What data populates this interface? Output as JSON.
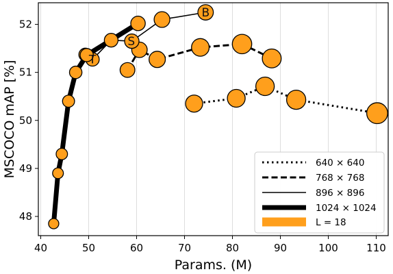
{
  "chart_data": {
    "type": "scatter",
    "xlabel": "Params. (M)",
    "ylabel": "MSCOCO mAP [%]",
    "xlim": [
      39.5,
      112.5
    ],
    "ylim": [
      47.6,
      52.45
    ],
    "xticks": [
      40,
      50,
      60,
      70,
      80,
      90,
      100,
      110
    ],
    "yticks": [
      48,
      49,
      50,
      51,
      52
    ],
    "grid": "vertical",
    "legend_position": "lower-right",
    "legend": [
      {
        "label": "640 × 640",
        "style": "dotted"
      },
      {
        "label": "768 × 768",
        "style": "dashed"
      },
      {
        "label": "896 × 896",
        "style": "thin"
      },
      {
        "label": "1024 × 1024",
        "style": "thick"
      },
      {
        "label": "L = 18",
        "style": "bar"
      }
    ],
    "colors": {
      "marker_fill": "#ff9f1c",
      "marker_edge": "#000000",
      "line": "#000000",
      "grid": "#dddddd"
    },
    "series": [
      {
        "name": "640 × 640",
        "style": "dotted",
        "points": [
          {
            "x": 72.0,
            "y": 50.35,
            "size": 1.0
          },
          {
            "x": 80.8,
            "y": 50.46,
            "size": 1.04
          },
          {
            "x": 86.8,
            "y": 50.71,
            "size": 1.08
          },
          {
            "x": 93.3,
            "y": 50.43,
            "size": 1.12
          },
          {
            "x": 110.2,
            "y": 50.15,
            "size": 1.22
          }
        ]
      },
      {
        "name": "768 × 768",
        "style": "dashed",
        "points": [
          {
            "x": 58.1,
            "y": 51.05,
            "size": 0.86
          },
          {
            "x": 60.6,
            "y": 51.47,
            "size": 0.9
          },
          {
            "x": 64.3,
            "y": 51.27,
            "size": 0.95
          },
          {
            "x": 73.3,
            "y": 51.52,
            "size": 1.03
          },
          {
            "x": 82.0,
            "y": 51.59,
            "size": 1.14
          },
          {
            "x": 88.2,
            "y": 51.29,
            "size": 1.1
          }
        ]
      },
      {
        "name": "896 × 896",
        "style": "thin",
        "points": [
          {
            "x": 49.3,
            "y": 51.37,
            "size": 0.75
          },
          {
            "x": 50.8,
            "y": 51.27,
            "size": 0.78
          },
          {
            "x": 54.7,
            "y": 51.67,
            "size": 0.8
          },
          {
            "x": 59.0,
            "y": 51.65,
            "size": 0.84
          },
          {
            "x": 65.3,
            "y": 52.1,
            "size": 0.92
          },
          {
            "x": 74.4,
            "y": 52.25,
            "size": 0.9
          }
        ]
      },
      {
        "name": "1024 × 1024",
        "style": "thick",
        "points": [
          {
            "x": 42.7,
            "y": 47.85,
            "size": 0.6
          },
          {
            "x": 43.6,
            "y": 48.9,
            "size": 0.63
          },
          {
            "x": 44.4,
            "y": 49.3,
            "size": 0.66
          },
          {
            "x": 45.8,
            "y": 50.4,
            "size": 0.7
          },
          {
            "x": 47.3,
            "y": 51.0,
            "size": 0.73
          },
          {
            "x": 49.6,
            "y": 51.36,
            "size": 0.77
          },
          {
            "x": 60.3,
            "y": 52.02,
            "size": 0.85
          }
        ]
      }
    ],
    "annotations": [
      {
        "text": "B",
        "x": 74.4,
        "y": 52.25
      },
      {
        "text": "S",
        "x": 58.9,
        "y": 51.65
      },
      {
        "text": "T",
        "x": 50.8,
        "y": 51.27
      }
    ]
  }
}
